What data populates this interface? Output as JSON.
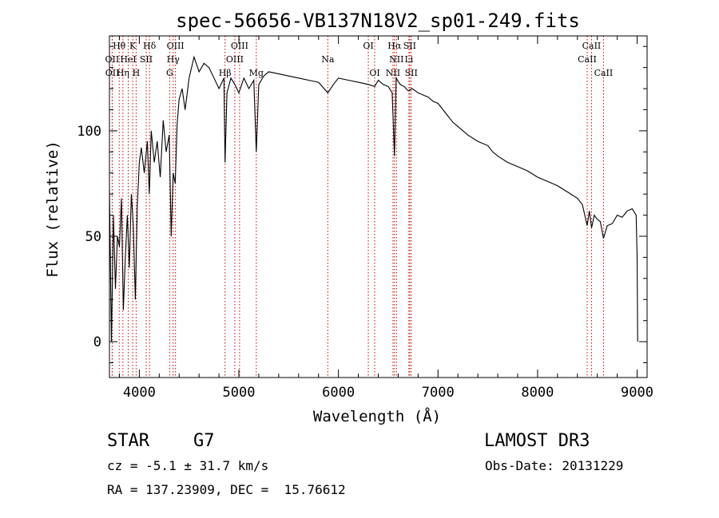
{
  "chart_data": {
    "type": "line",
    "title": "spec-56656-VB137N18V2_sp01-249.fits",
    "xlabel": "Wavelength (Å)",
    "ylabel": "Flux (relative)",
    "xlim": [
      3700,
      9100
    ],
    "ylim": [
      -17,
      145
    ],
    "xticks": [
      4000,
      5000,
      6000,
      7000,
      8000,
      9000
    ],
    "yticks": [
      0,
      50,
      100
    ],
    "spectral_lines": [
      {
        "name": "Hθ",
        "wavelength": 3798,
        "tier": 0
      },
      {
        "name": "OII",
        "wavelength": 3727,
        "tier": 1
      },
      {
        "name": "OII",
        "wavelength": 3729,
        "tier": 2
      },
      {
        "name": "Hη",
        "wavelength": 3835,
        "tier": 2
      },
      {
        "name": "HeI",
        "wavelength": 3889,
        "tier": 1
      },
      {
        "name": "K",
        "wavelength": 3934,
        "tier": 0
      },
      {
        "name": "SII",
        "wavelength": 4069,
        "tier": 1
      },
      {
        "name": "H",
        "wavelength": 3968,
        "tier": 2
      },
      {
        "name": "Hδ",
        "wavelength": 4102,
        "tier": 0
      },
      {
        "name": "OIII",
        "wavelength": 4363,
        "tier": 0
      },
      {
        "name": "Hγ",
        "wavelength": 4340,
        "tier": 1
      },
      {
        "name": "G",
        "wavelength": 4305,
        "tier": 2
      },
      {
        "name": "OIII",
        "wavelength": 5007,
        "tier": 0
      },
      {
        "name": "OIII",
        "wavelength": 4959,
        "tier": 1
      },
      {
        "name": "Hβ",
        "wavelength": 4861,
        "tier": 2
      },
      {
        "name": "Mg",
        "wavelength": 5175,
        "tier": 2
      },
      {
        "name": "Na",
        "wavelength": 5893,
        "tier": 1
      },
      {
        "name": "OI",
        "wavelength": 6300,
        "tier": 0
      },
      {
        "name": "OI",
        "wavelength": 6364,
        "tier": 2
      },
      {
        "name": "Hα",
        "wavelength": 6563,
        "tier": 0
      },
      {
        "name": "NII",
        "wavelength": 6583,
        "tier": 1
      },
      {
        "name": "NII",
        "wavelength": 6548,
        "tier": 2
      },
      {
        "name": "SII",
        "wavelength": 6716,
        "tier": 0
      },
      {
        "name": "Li",
        "wavelength": 6708,
        "tier": 1
      },
      {
        "name": "SII",
        "wavelength": 6731,
        "tier": 2
      },
      {
        "name": "CaII",
        "wavelength": 8542,
        "tier": 0
      },
      {
        "name": "CaII",
        "wavelength": 8498,
        "tier": 1
      },
      {
        "name": "CaII",
        "wavelength": 8662,
        "tier": 2
      }
    ],
    "series": [
      {
        "name": "flux",
        "x": [
          3700,
          3720,
          3740,
          3760,
          3780,
          3800,
          3820,
          3840,
          3860,
          3880,
          3900,
          3920,
          3940,
          3960,
          3980,
          4000,
          4020,
          4050,
          4080,
          4100,
          4120,
          4150,
          4180,
          4210,
          4240,
          4270,
          4300,
          4320,
          4340,
          4360,
          4380,
          4400,
          4430,
          4460,
          4500,
          4550,
          4600,
          4650,
          4700,
          4750,
          4800,
          4850,
          4861,
          4880,
          4920,
          4960,
          5000,
          5050,
          5100,
          5150,
          5175,
          5200,
          5250,
          5300,
          5400,
          5500,
          5600,
          5700,
          5800,
          5893,
          5950,
          6000,
          6100,
          6200,
          6300,
          6364,
          6400,
          6450,
          6500,
          6540,
          6563,
          6580,
          6620,
          6660,
          6700,
          6740,
          6800,
          6850,
          6900,
          6950,
          7000,
          7050,
          7100,
          7150,
          7200,
          7300,
          7400,
          7500,
          7550,
          7600,
          7700,
          7800,
          7900,
          8000,
          8100,
          8200,
          8300,
          8400,
          8450,
          8498,
          8520,
          8542,
          8570,
          8600,
          8630,
          8662,
          8700,
          8750,
          8800,
          8850,
          8900,
          8950,
          8990,
          9000,
          9005
        ],
        "values": [
          72,
          0,
          60,
          25,
          50,
          45,
          68,
          15,
          40,
          60,
          35,
          70,
          55,
          20,
          65,
          85,
          92,
          80,
          95,
          70,
          100,
          85,
          95,
          78,
          105,
          90,
          98,
          50,
          80,
          75,
          103,
          115,
          120,
          110,
          125,
          135,
          128,
          132,
          130,
          125,
          120,
          125,
          85,
          118,
          125,
          122,
          118,
          125,
          120,
          124,
          90,
          122,
          126,
          128,
          127,
          126,
          125,
          124,
          123,
          118,
          122,
          125,
          124,
          123,
          122,
          121,
          124,
          122,
          121,
          118,
          88,
          125,
          122,
          121,
          119,
          120,
          118,
          117,
          116,
          114,
          113,
          110,
          107,
          104,
          102,
          98,
          95,
          93,
          90,
          88,
          85,
          83,
          81,
          78,
          76,
          74,
          71,
          68,
          65,
          55,
          62,
          54,
          60,
          58,
          57,
          49,
          55,
          56,
          60,
          59,
          62,
          63,
          60,
          40,
          0
        ]
      }
    ]
  },
  "info": {
    "class_label": "STAR",
    "subclass_label": "G7",
    "survey_label": "LAMOST DR3",
    "velocity_text": "cz = -5.1 ± 31.7 km/s",
    "obs_date_text": "Obs-Date: 20131229",
    "coords_text": "RA = 137.23909, DEC =  15.76612"
  }
}
